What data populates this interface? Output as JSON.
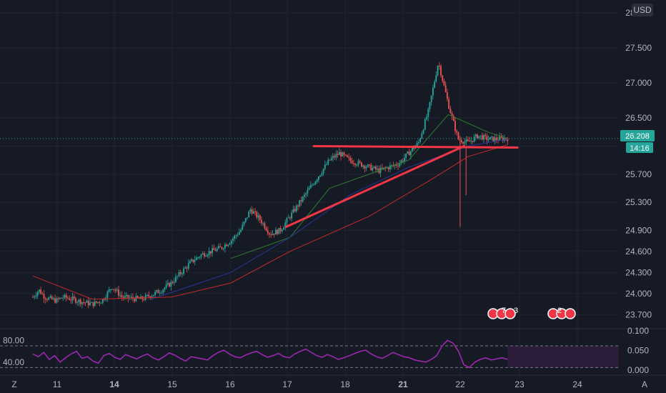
{
  "currency_label": "USD",
  "price_tag": {
    "value": "26.208",
    "countdown": "14:16",
    "color": "#26a69a"
  },
  "corner_left": "Z",
  "corner_right": "A",
  "colors": {
    "background": "#161a25",
    "up": "#26a69a",
    "down": "#ef5350",
    "ma_fast": "#2e7d32",
    "ma_mid": "#283593",
    "ma_slow": "#c62828",
    "trendline": "#f23645",
    "rsi": "#9c27b0",
    "grid": "#1f2430"
  },
  "event_markers": [
    {
      "icon": "us-flag-icon",
      "count": "7",
      "count2": "3"
    },
    {
      "icon": "us-flag-icon",
      "count": "2",
      "count2": ""
    }
  ],
  "chart_data": [
    {
      "type": "candlestick",
      "title": "",
      "x_ticks": [
        "11",
        "14",
        "15",
        "16",
        "17",
        "18",
        "21",
        "22",
        "23",
        "24"
      ],
      "y_ticks": [
        "28.000",
        "27.500",
        "27.000",
        "26.500",
        "26.100",
        "25.700",
        "25.300",
        "24.900",
        "24.600",
        "24.300",
        "24.000",
        "23.700"
      ],
      "ylim": [
        23.55,
        28.1
      ],
      "last_price": 26.208,
      "path_points": [
        [
          0,
          23.95
        ],
        [
          0.03,
          24.05
        ],
        [
          0.06,
          23.95
        ],
        [
          0.09,
          23.92
        ],
        [
          0.12,
          23.9
        ],
        [
          0.15,
          23.95
        ],
        [
          0.2,
          23.92
        ],
        [
          0.25,
          23.88
        ],
        [
          0.3,
          23.85
        ],
        [
          0.35,
          23.9
        ],
        [
          0.4,
          24.1
        ],
        [
          0.45,
          23.95
        ],
        [
          0.5,
          23.93
        ],
        [
          0.55,
          23.92
        ],
        [
          0.6,
          23.98
        ],
        [
          0.65,
          24.05
        ],
        [
          0.7,
          24.15
        ],
        [
          0.75,
          24.3
        ],
        [
          0.8,
          24.45
        ],
        [
          0.85,
          24.55
        ],
        [
          0.9,
          24.6
        ],
        [
          0.95,
          24.65
        ],
        [
          1.0,
          24.75
        ],
        [
          1.05,
          24.9
        ],
        [
          1.1,
          25.2
        ],
        [
          1.15,
          25.05
        ],
        [
          1.2,
          24.85
        ],
        [
          1.25,
          24.9
        ],
        [
          1.3,
          25.1
        ],
        [
          1.35,
          25.3
        ],
        [
          1.4,
          25.5
        ],
        [
          1.45,
          25.7
        ],
        [
          1.5,
          25.9
        ],
        [
          1.55,
          26.0
        ],
        [
          1.6,
          25.9
        ],
        [
          1.65,
          25.85
        ],
        [
          1.7,
          25.8
        ],
        [
          1.75,
          25.75
        ],
        [
          1.8,
          25.8
        ],
        [
          1.85,
          25.85
        ],
        [
          1.9,
          26.0
        ],
        [
          1.95,
          26.15
        ],
        [
          2.0,
          26.6
        ],
        [
          2.05,
          27.3
        ],
        [
          2.1,
          26.7
        ],
        [
          2.15,
          26.2
        ],
        [
          2.2,
          26.15
        ],
        [
          2.25,
          26.25
        ],
        [
          2.3,
          26.2
        ],
        [
          2.35,
          26.2
        ],
        [
          2.4,
          26.21
        ]
      ],
      "moving_averages": [
        {
          "name": "",
          "color": "#2e7d32",
          "points": [
            [
              1.0,
              24.5
            ],
            [
              1.3,
              24.8
            ],
            [
              1.5,
              25.5
            ],
            [
              1.9,
              25.9
            ],
            [
              2.1,
              26.55
            ],
            [
              2.3,
              26.3
            ],
            [
              2.4,
              26.21
            ]
          ]
        },
        {
          "name": "",
          "color": "#283593",
          "points": [
            [
              0.6,
              23.92
            ],
            [
              1.0,
              24.3
            ],
            [
              1.3,
              24.8
            ],
            [
              1.6,
              25.4
            ],
            [
              1.9,
              25.8
            ],
            [
              2.2,
              26.1
            ],
            [
              2.4,
              26.2
            ]
          ]
        },
        {
          "name": "",
          "color": "#c62828",
          "points": [
            [
              0,
              24.25
            ],
            [
              0.3,
              23.92
            ],
            [
              0.7,
              23.95
            ],
            [
              1.0,
              24.15
            ],
            [
              1.3,
              24.6
            ],
            [
              1.7,
              25.1
            ],
            [
              2.0,
              25.6
            ],
            [
              2.2,
              25.95
            ],
            [
              2.4,
              26.12
            ]
          ]
        }
      ]
    },
    {
      "type": "line",
      "title": "",
      "y_ticks": [
        "80.00",
        "40.00"
      ],
      "levels": [
        70,
        30
      ],
      "ylim": [
        20,
        95
      ],
      "values_note": "",
      "values": [
        55,
        50,
        58,
        45,
        52,
        40,
        48,
        55,
        60,
        47,
        50,
        42,
        38,
        52,
        56,
        49,
        45,
        54,
        50,
        46,
        51,
        55,
        48,
        44,
        50,
        57,
        53,
        47,
        42,
        50,
        48,
        46,
        44,
        52,
        58,
        62,
        55,
        50,
        48,
        53,
        57,
        60,
        54,
        49,
        52,
        56,
        50,
        48,
        55,
        60,
        64,
        58,
        52,
        49,
        54,
        50,
        45,
        48,
        52,
        56,
        60,
        62,
        55,
        50,
        47,
        52,
        58,
        54,
        50,
        48,
        44,
        42,
        40,
        45,
        52,
        70,
        80,
        75,
        60,
        35,
        30,
        40,
        45,
        48,
        44,
        46,
        48,
        45
      ]
    },
    {
      "type": "line",
      "title": "",
      "y_ticks": [
        "0.100",
        "0.050",
        "0.000"
      ],
      "ylim": [
        0,
        0.1
      ]
    }
  ]
}
